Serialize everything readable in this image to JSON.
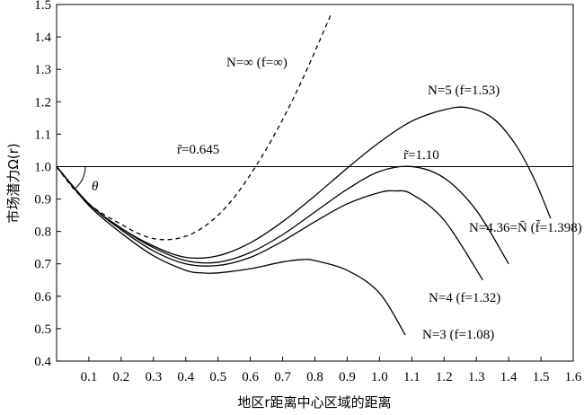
{
  "chart_data": {
    "type": "line",
    "xlabel": "地区r距离中心区域的距离",
    "ylabel": "市场潜力Ω(r)",
    "xlim": [
      0,
      1.6
    ],
    "ylim": [
      0.4,
      1.5
    ],
    "x_ticks": [
      "0.1",
      "0.2",
      "0.3",
      "0.4",
      "0.5",
      "0.6",
      "0.7",
      "0.8",
      "0.9",
      "1.0",
      "1.1",
      "1.2",
      "1.3",
      "1.4",
      "1.5",
      "1.6"
    ],
    "y_ticks": [
      "0.4",
      "0.5",
      "0.6",
      "0.7",
      "0.8",
      "0.9",
      "1.0",
      "1.1",
      "1.2",
      "1.3",
      "1.4",
      "1.5"
    ],
    "grid": false,
    "reference_line": {
      "y": 1.0
    },
    "angle_label": "θ",
    "series": [
      {
        "name": "N=∞ (f=∞)",
        "style": "dashed",
        "points": [
          [
            0,
            1.0
          ],
          [
            0.05,
            0.935
          ],
          [
            0.1,
            0.885
          ],
          [
            0.15,
            0.85
          ],
          [
            0.2,
            0.822
          ],
          [
            0.25,
            0.795
          ],
          [
            0.3,
            0.778
          ],
          [
            0.35,
            0.775
          ],
          [
            0.4,
            0.785
          ],
          [
            0.45,
            0.81
          ],
          [
            0.5,
            0.85
          ],
          [
            0.55,
            0.905
          ],
          [
            0.6,
            0.975
          ],
          [
            0.65,
            1.055
          ],
          [
            0.7,
            1.145
          ],
          [
            0.75,
            1.245
          ],
          [
            0.8,
            1.355
          ],
          [
            0.85,
            1.47
          ]
        ]
      },
      {
        "name": "N=5 (f=1.53)",
        "style": "solid",
        "points": [
          [
            0,
            1.0
          ],
          [
            0.1,
            0.885
          ],
          [
            0.2,
            0.81
          ],
          [
            0.3,
            0.755
          ],
          [
            0.4,
            0.72
          ],
          [
            0.5,
            0.725
          ],
          [
            0.6,
            0.765
          ],
          [
            0.7,
            0.83
          ],
          [
            0.8,
            0.91
          ],
          [
            0.9,
            0.995
          ],
          [
            1.0,
            1.075
          ],
          [
            1.1,
            1.14
          ],
          [
            1.2,
            1.175
          ],
          [
            1.27,
            1.182
          ],
          [
            1.35,
            1.15
          ],
          [
            1.42,
            1.07
          ],
          [
            1.48,
            0.96
          ],
          [
            1.53,
            0.84
          ]
        ]
      },
      {
        "name": "N=4.36=Ñ (f̃=1.398)",
        "style": "solid",
        "points": [
          [
            0,
            1.0
          ],
          [
            0.1,
            0.885
          ],
          [
            0.2,
            0.81
          ],
          [
            0.3,
            0.75
          ],
          [
            0.4,
            0.71
          ],
          [
            0.5,
            0.705
          ],
          [
            0.6,
            0.735
          ],
          [
            0.7,
            0.79
          ],
          [
            0.8,
            0.86
          ],
          [
            0.9,
            0.93
          ],
          [
            1.0,
            0.985
          ],
          [
            1.1,
            1.0
          ],
          [
            1.2,
            0.965
          ],
          [
            1.3,
            0.865
          ],
          [
            1.4,
            0.7
          ]
        ]
      },
      {
        "name": "N=4 (f=1.32)",
        "style": "solid",
        "points": [
          [
            0,
            1.0
          ],
          [
            0.1,
            0.885
          ],
          [
            0.2,
            0.805
          ],
          [
            0.3,
            0.74
          ],
          [
            0.4,
            0.7
          ],
          [
            0.5,
            0.695
          ],
          [
            0.6,
            0.72
          ],
          [
            0.7,
            0.77
          ],
          [
            0.8,
            0.83
          ],
          [
            0.9,
            0.885
          ],
          [
            1.0,
            0.92
          ],
          [
            1.05,
            0.925
          ],
          [
            1.1,
            0.915
          ],
          [
            1.2,
            0.835
          ],
          [
            1.32,
            0.65
          ]
        ]
      },
      {
        "name": "N=3 (f=1.08)",
        "style": "solid",
        "points": [
          [
            0,
            1.0
          ],
          [
            0.1,
            0.88
          ],
          [
            0.2,
            0.795
          ],
          [
            0.3,
            0.725
          ],
          [
            0.4,
            0.68
          ],
          [
            0.45,
            0.672
          ],
          [
            0.5,
            0.672
          ],
          [
            0.6,
            0.685
          ],
          [
            0.7,
            0.706
          ],
          [
            0.76,
            0.713
          ],
          [
            0.8,
            0.71
          ],
          [
            0.9,
            0.68
          ],
          [
            1.0,
            0.61
          ],
          [
            1.08,
            0.48
          ]
        ]
      }
    ],
    "annotations": [
      {
        "id": "r_inf",
        "text": "r̃=0.645"
      },
      {
        "id": "r_4",
        "text": "r̃=1.10"
      }
    ]
  }
}
